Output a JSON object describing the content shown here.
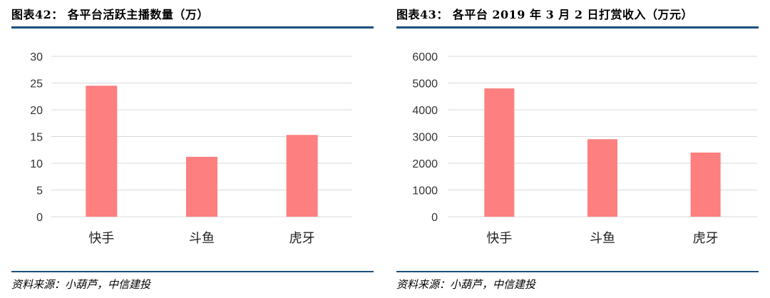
{
  "colors": {
    "bar": "#fe7f7f",
    "rule": "#1d4f7c",
    "grid": "#d9d9d9"
  },
  "charts": [
    {
      "title": "图表42： 各平台活跃主播数量（万）",
      "source": "资料来源：小葫芦，中信建投"
    },
    {
      "title": "图表43： 各平台 2019 年 3 月 2 日打赏收入（万元）",
      "source": "资料来源：小葫芦，中信建投"
    }
  ],
  "chart_data": [
    {
      "type": "bar",
      "title": "各平台活跃主播数量（万）",
      "categories": [
        "快手",
        "斗鱼",
        "虎牙"
      ],
      "values": [
        24.5,
        11.2,
        15.3
      ],
      "ylim": [
        0,
        30
      ],
      "yticks": [
        0,
        5,
        10,
        15,
        20,
        25,
        30
      ],
      "grid": true
    },
    {
      "type": "bar",
      "title": "各平台 2019 年 3 月 2 日打赏收入（万元）",
      "categories": [
        "快手",
        "斗鱼",
        "虎牙"
      ],
      "values": [
        4800,
        2900,
        2400
      ],
      "ylim": [
        0,
        6000
      ],
      "yticks": [
        0,
        1000,
        2000,
        3000,
        4000,
        5000,
        6000
      ],
      "grid": true
    }
  ]
}
